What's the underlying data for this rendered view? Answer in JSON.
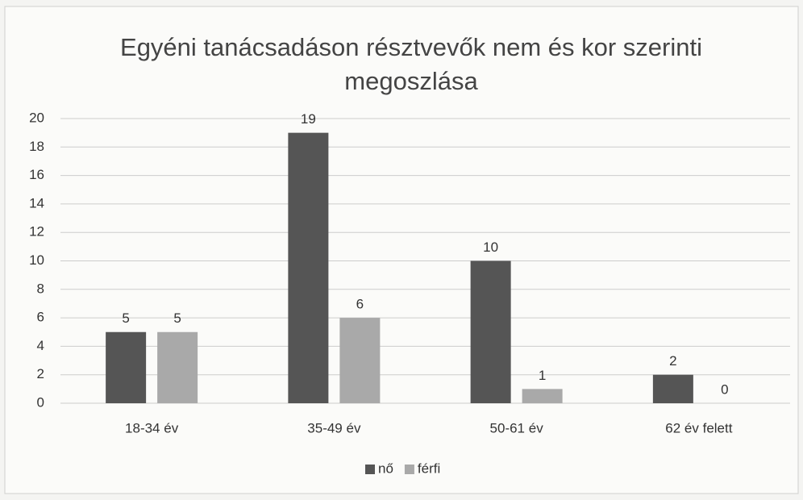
{
  "chart_data": {
    "type": "bar",
    "title": "Egyéni tanácsadáson résztvevők nem és kor szerinti megoszlása",
    "categories": [
      "18-34 év",
      "35-49 év",
      "50-61 év",
      "62 év felett"
    ],
    "series": [
      {
        "name": "nő",
        "color": "#555555",
        "values": [
          5,
          19,
          10,
          2
        ]
      },
      {
        "name": "férfi",
        "color": "#a9a9a9",
        "values": [
          5,
          6,
          1,
          0
        ]
      }
    ],
    "ylim": [
      0,
      20
    ],
    "yticks": [
      0,
      2,
      4,
      6,
      8,
      10,
      12,
      14,
      16,
      18,
      20
    ],
    "grid": true,
    "legend": "bottom",
    "data_labels": true
  }
}
